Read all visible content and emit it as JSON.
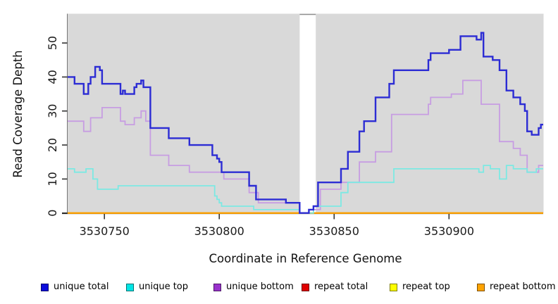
{
  "figure": {
    "plot_bg": "#d9d9d9",
    "x_ticks": [
      3530750,
      3530800,
      3530850,
      3530900
    ],
    "x_tick_labels": [
      "3530750",
      "3530800",
      "3530850",
      "3530900"
    ],
    "y_ticks": [
      0,
      10,
      20,
      30,
      40,
      50
    ],
    "y_tick_labels": [
      "0",
      "10",
      "20",
      "30",
      "40",
      "50"
    ],
    "gap_region": {
      "x_from": 3530835,
      "x_to": 3530842
    }
  },
  "legend": {
    "items": [
      {
        "label": "unique total",
        "color": "#0c0cdc"
      },
      {
        "label": "unique top",
        "color": "#00e5e5"
      },
      {
        "label": "unique bottom",
        "color": "#9932cc"
      },
      {
        "label": "repeat total",
        "color": "#e00000"
      },
      {
        "label": "repeat top",
        "color": "#ffff00"
      },
      {
        "label": "repeat bottom",
        "color": "#ffa300"
      }
    ]
  },
  "chart_data": {
    "type": "line",
    "step": true,
    "title": "",
    "xlabel": "Coordinate in Reference Genome",
    "ylabel": "Read Coverage Depth",
    "xlim": [
      3530734,
      3530941
    ],
    "ylim": [
      0,
      58
    ],
    "grid": false,
    "legend_position": "bottom",
    "masked_region": [
      3530835,
      3530842
    ],
    "series": [
      {
        "name": "unique total",
        "color": "#2c2cd4",
        "width": 2.4,
        "points": [
          [
            3530734,
            40
          ],
          [
            3530737,
            38
          ],
          [
            3530741,
            35
          ],
          [
            3530743,
            38
          ],
          [
            3530744,
            40
          ],
          [
            3530746,
            43
          ],
          [
            3530748,
            42
          ],
          [
            3530749,
            38
          ],
          [
            3530757,
            35
          ],
          [
            3530758,
            36
          ],
          [
            3530759,
            35
          ],
          [
            3530763,
            37
          ],
          [
            3530764,
            38
          ],
          [
            3530766,
            39
          ],
          [
            3530767,
            37
          ],
          [
            3530770,
            25
          ],
          [
            3530778,
            22
          ],
          [
            3530787,
            20
          ],
          [
            3530797,
            17
          ],
          [
            3530799,
            16
          ],
          [
            3530800,
            15
          ],
          [
            3530801,
            12
          ],
          [
            3530813,
            8
          ],
          [
            3530816,
            4
          ],
          [
            3530829,
            3
          ],
          [
            3530835,
            0
          ],
          [
            3530839,
            1
          ],
          [
            3530841,
            2
          ],
          [
            3530843,
            9
          ],
          [
            3530853,
            13
          ],
          [
            3530856,
            18
          ],
          [
            3530861,
            24
          ],
          [
            3530863,
            27
          ],
          [
            3530868,
            34
          ],
          [
            3530874,
            38
          ],
          [
            3530876,
            42
          ],
          [
            3530891,
            45
          ],
          [
            3530892,
            47
          ],
          [
            3530900,
            48
          ],
          [
            3530905,
            52
          ],
          [
            3530912,
            51
          ],
          [
            3530914,
            53
          ],
          [
            3530915,
            46
          ],
          [
            3530919,
            45
          ],
          [
            3530922,
            42
          ],
          [
            3530925,
            36
          ],
          [
            3530928,
            34
          ],
          [
            3530931,
            32
          ],
          [
            3530933,
            30
          ],
          [
            3530934,
            24
          ],
          [
            3530936,
            23
          ],
          [
            3530939,
            25
          ],
          [
            3530940,
            26
          ],
          [
            3530941,
            26
          ]
        ]
      },
      {
        "name": "unique top",
        "color": "#7ce9e3",
        "width": 1.8,
        "points": [
          [
            3530734,
            13
          ],
          [
            3530737,
            12
          ],
          [
            3530742,
            13
          ],
          [
            3530745,
            10
          ],
          [
            3530747,
            7
          ],
          [
            3530756,
            8
          ],
          [
            3530798,
            5
          ],
          [
            3530799,
            4
          ],
          [
            3530800,
            3
          ],
          [
            3530801,
            2
          ],
          [
            3530815,
            1
          ],
          [
            3530835,
            0
          ],
          [
            3530841,
            2
          ],
          [
            3530853,
            6
          ],
          [
            3530856,
            9
          ],
          [
            3530876,
            13
          ],
          [
            3530913,
            12
          ],
          [
            3530915,
            14
          ],
          [
            3530918,
            13
          ],
          [
            3530922,
            10
          ],
          [
            3530925,
            14
          ],
          [
            3530928,
            13
          ],
          [
            3530934,
            12
          ],
          [
            3530938,
            13
          ],
          [
            3530941,
            13
          ]
        ]
      },
      {
        "name": "unique bottom",
        "color": "#c79de2",
        "width": 1.8,
        "points": [
          [
            3530734,
            27
          ],
          [
            3530741,
            24
          ],
          [
            3530744,
            28
          ],
          [
            3530749,
            31
          ],
          [
            3530757,
            27
          ],
          [
            3530759,
            26
          ],
          [
            3530763,
            28
          ],
          [
            3530766,
            30
          ],
          [
            3530768,
            27
          ],
          [
            3530770,
            17
          ],
          [
            3530778,
            14
          ],
          [
            3530787,
            12
          ],
          [
            3530802,
            10
          ],
          [
            3530813,
            6
          ],
          [
            3530817,
            3
          ],
          [
            3530835,
            0
          ],
          [
            3530839,
            1
          ],
          [
            3530844,
            7
          ],
          [
            3530853,
            9
          ],
          [
            3530861,
            15
          ],
          [
            3530868,
            18
          ],
          [
            3530875,
            29
          ],
          [
            3530891,
            32
          ],
          [
            3530892,
            34
          ],
          [
            3530901,
            35
          ],
          [
            3530906,
            39
          ],
          [
            3530914,
            32
          ],
          [
            3530922,
            21
          ],
          [
            3530928,
            19
          ],
          [
            3530931,
            17
          ],
          [
            3530934,
            12
          ],
          [
            3530939,
            14
          ],
          [
            3530941,
            14
          ]
        ]
      },
      {
        "name": "repeat total",
        "color": "#e00000",
        "width": 2,
        "points": [
          [
            3530734,
            0
          ],
          [
            3530941,
            0
          ]
        ]
      },
      {
        "name": "repeat top",
        "color": "#ffff00",
        "width": 2,
        "points": [
          [
            3530734,
            0
          ],
          [
            3530941,
            0
          ]
        ]
      },
      {
        "name": "repeat bottom",
        "color": "#ff9f00",
        "width": 2,
        "points": [
          [
            3530734,
            0
          ],
          [
            3530941,
            0
          ]
        ]
      }
    ]
  }
}
